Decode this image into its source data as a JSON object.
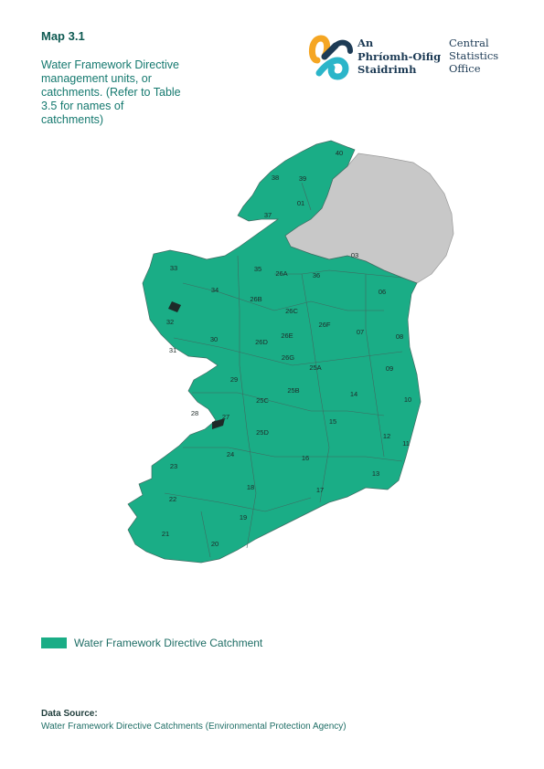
{
  "header": {
    "map_number": "Map 3.1",
    "description": "Water Framework Directive management units, or catchments. (Refer to Table 3.5 for names of catchments)"
  },
  "logo": {
    "irish_lines": [
      "An",
      "Phríomh-Oifig",
      "Staidrimh"
    ],
    "english_lines": [
      "Central",
      "Statistics",
      "Office"
    ]
  },
  "colors": {
    "catchment_fill": "#1aad86",
    "northern_ireland_fill": "#c8c8c8"
  },
  "catchments": [
    "01",
    "03",
    "06",
    "07",
    "08",
    "09",
    "10",
    "11",
    "12",
    "13",
    "14",
    "15",
    "16",
    "17",
    "18",
    "19",
    "20",
    "21",
    "22",
    "23",
    "24",
    "25A",
    "25B",
    "25C",
    "25D",
    "26A",
    "26B",
    "26C",
    "26D",
    "26E",
    "26F",
    "26G",
    "27",
    "28",
    "29",
    "30",
    "31",
    "32",
    "33",
    "34",
    "35",
    "36",
    "37",
    "38",
    "39",
    "40"
  ],
  "legend": {
    "label": "Water Framework Directive Catchment"
  },
  "source": {
    "title": "Data Source:",
    "text": "Water Framework Directive Catchments (Environmental Protection Agency)"
  }
}
